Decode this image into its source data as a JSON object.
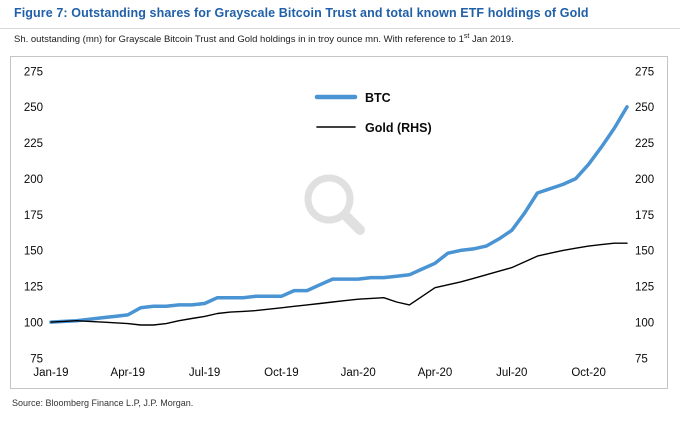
{
  "figure": {
    "title": "Figure 7: Outstanding shares for Grayscale Bitcoin Trust and total known ETF holdings of Gold",
    "subtitle_prefix": "Sh. outstanding (mn) for Grayscale Bitcoin Trust and Gold holdings in in troy ounce mn. With reference to 1",
    "subtitle_sup": "st",
    "subtitle_suffix": " Jan 2019.",
    "source": "Source: Bloomberg Finance L.P, J.P. Morgan."
  },
  "colors": {
    "title": "#2060a8",
    "btc_line": "#4a94d4",
    "gold_line": "#000000",
    "panel_border": "#c4c4c4"
  },
  "chart_data": {
    "type": "line",
    "title": "Outstanding shares for Grayscale Bitcoin Trust and total known ETF holdings of Gold",
    "xlabel": "",
    "ylabel": "",
    "ylim": [
      75,
      275
    ],
    "y_ticks": [
      75,
      100,
      125,
      150,
      175,
      200,
      225,
      250,
      275
    ],
    "x_range": [
      0,
      22.5
    ],
    "x_tick_positions": [
      0,
      3,
      6,
      9,
      12,
      15,
      18,
      21
    ],
    "x_tick_labels": [
      "Jan-19",
      "Apr-19",
      "Jul-19",
      "Oct-19",
      "Jan-20",
      "Apr-20",
      "Jul-20",
      "Oct-20"
    ],
    "grid": false,
    "dual_axis": true,
    "legend_position": "top-center",
    "legend": [
      {
        "name": "BTC",
        "color": "#4a94d4",
        "width": 4.5
      },
      {
        "name": "Gold (RHS)",
        "color": "#000000",
        "width": 1.6
      }
    ],
    "x": [
      0,
      0.5,
      1,
      1.5,
      2,
      2.5,
      3,
      3.5,
      4,
      4.5,
      5,
      5.5,
      6,
      6.5,
      7,
      7.5,
      8,
      8.5,
      9,
      9.5,
      10,
      10.5,
      11,
      11.5,
      12,
      12.5,
      13,
      13.5,
      14,
      14.5,
      15,
      15.5,
      16,
      16.5,
      17,
      17.5,
      18,
      18.5,
      19,
      19.5,
      20,
      20.5,
      21,
      21.5,
      22,
      22.5
    ],
    "series": [
      {
        "name": "BTC",
        "axis": "left",
        "color": "#4a94d4",
        "stroke_width": 3.5,
        "values": [
          100,
          100.5,
          101,
          102,
          103,
          104,
          105,
          110,
          111,
          111,
          112,
          112,
          113,
          117,
          117,
          117,
          118,
          118,
          118,
          122,
          122,
          126,
          130,
          130,
          130,
          131,
          131,
          132,
          133,
          137,
          141,
          148,
          150,
          151,
          153,
          158,
          164,
          176,
          190,
          193,
          196,
          200,
          210,
          222,
          235,
          250
        ]
      },
      {
        "name": "Gold (RHS)",
        "axis": "right",
        "color": "#000000",
        "stroke_width": 1.4,
        "values": [
          100,
          100.5,
          101,
          100.5,
          100,
          99.5,
          99,
          98,
          98,
          99,
          101,
          102.5,
          104,
          106,
          107,
          107.5,
          108,
          109,
          110,
          111,
          112,
          113,
          114,
          115,
          116,
          116.5,
          117,
          114,
          112,
          118,
          124,
          126,
          128,
          130.5,
          133,
          135.5,
          138,
          142,
          146,
          148,
          150,
          151.5,
          153,
          154,
          155,
          155
        ]
      }
    ]
  }
}
